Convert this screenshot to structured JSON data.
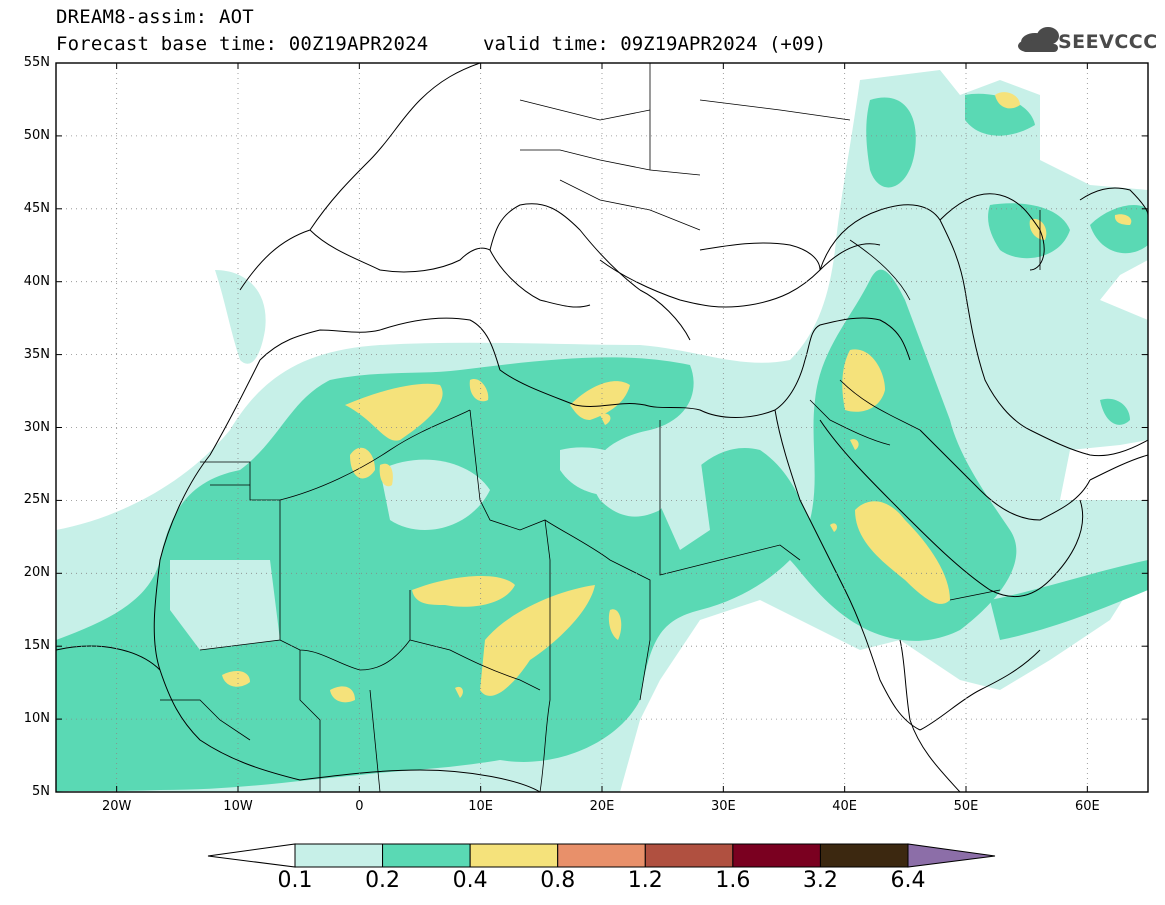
{
  "header": {
    "title": "DREAM8-assim: AOT",
    "base_time_label": "Forecast base time: 00Z19APR2024",
    "valid_time_label": "valid time: 09Z19APR2024 (+09)",
    "logo_text": "SEEVCCC"
  },
  "map": {
    "lon_range": [
      -25,
      65
    ],
    "lat_range": [
      5,
      55
    ],
    "lat_ticks": [
      "5N",
      "10N",
      "15N",
      "20N",
      "25N",
      "30N",
      "35N",
      "40N",
      "45N",
      "50N",
      "55N"
    ],
    "lon_ticks": [
      "20W",
      "10W",
      "0",
      "10E",
      "20E",
      "30E",
      "40E",
      "50E",
      "60E"
    ],
    "grid": "dotted",
    "background": "#ffffff"
  },
  "legend": {
    "levels": [
      "0.1",
      "0.2",
      "0.4",
      "0.8",
      "1.2",
      "1.6",
      "3.2",
      "6.4"
    ],
    "colors": [
      "#c7f0e8",
      "#5ad9b4",
      "#f5e27b",
      "#e8906a",
      "#b05040",
      "#7a0020",
      "#3c2810",
      "#8c6ea8"
    ],
    "under_color": "#ffffff"
  }
}
